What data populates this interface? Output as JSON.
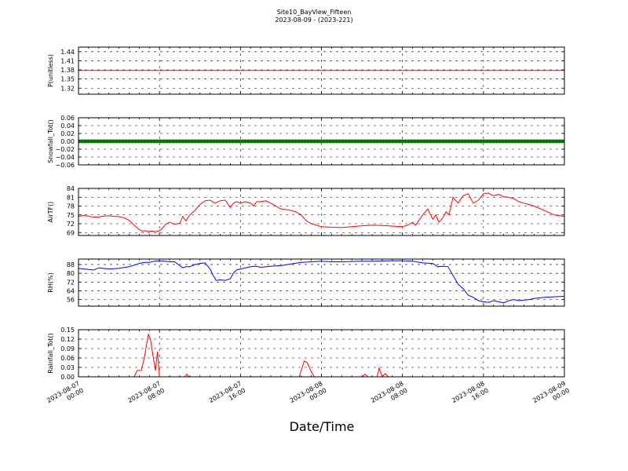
{
  "figure": {
    "title": "Site10_BayView_Fifteen",
    "subtitle": "2023-08-09 - (2023-221)",
    "xlabel": "Date/Time"
  },
  "chart_data": [
    {
      "id": "p",
      "type": "line",
      "ylabel": "P(unitless)",
      "ylim": [
        1.3,
        1.455
      ],
      "yticks": [
        1.32,
        1.35,
        1.38,
        1.41,
        1.44
      ],
      "ytick_labels": [
        "1.32",
        "1.35",
        "1.38",
        "1.41",
        "1.44"
      ],
      "color": "#ff0000",
      "style": "line",
      "grid": true,
      "xlim": [
        0,
        48
      ],
      "x": [
        0,
        48
      ],
      "y": [
        1.378,
        1.378
      ]
    },
    {
      "id": "snow",
      "type": "line",
      "ylabel": "Snowfall_Tot()",
      "ylim": [
        -0.06,
        0.06
      ],
      "yticks": [
        -0.06,
        -0.04,
        -0.02,
        0.0,
        0.02,
        0.04,
        0.06
      ],
      "ytick_labels": [
        "−0.06",
        "−0.04",
        "−0.02",
        "0.00",
        "0.02",
        "0.04",
        "0.06"
      ],
      "color": "#008000",
      "style": "thick",
      "grid": true,
      "xlim": [
        0,
        48
      ],
      "x": [
        0,
        48
      ],
      "y": [
        0,
        0
      ]
    },
    {
      "id": "air",
      "type": "line",
      "ylabel": "AirTF()",
      "ylim": [
        68,
        84
      ],
      "yticks": [
        69,
        72,
        75,
        78,
        81,
        84
      ],
      "ytick_labels": [
        "69",
        "72",
        "75",
        "78",
        "81",
        "84"
      ],
      "color": "#ff0000",
      "style": "line",
      "grid": true,
      "xlim": [
        0,
        48
      ],
      "x": [
        0,
        0.5,
        1,
        1.5,
        2,
        2.5,
        3,
        3.5,
        4,
        4.5,
        5,
        5.5,
        6,
        6.3,
        6.6,
        7,
        7.3,
        7.6,
        8,
        8.3,
        8.6,
        9,
        9.5,
        10,
        10.3,
        10.6,
        11,
        11.5,
        12,
        12.5,
        13,
        13.5,
        14,
        14.5,
        15,
        15.3,
        15.6,
        16,
        16.5,
        17,
        17.3,
        17.6,
        18,
        18.5,
        19,
        19.5,
        20,
        20.5,
        21,
        21.5,
        22,
        22.5,
        23,
        23.5,
        24,
        25,
        26,
        27,
        28,
        29,
        30,
        31,
        32,
        32.5,
        33,
        33.3,
        33.6,
        34,
        34.5,
        35,
        35.3,
        35.6,
        36,
        36.3,
        36.6,
        37,
        37.5,
        38,
        38.5,
        39,
        39.5,
        40,
        40.5,
        41,
        41.5,
        42,
        42.5,
        43,
        43.5,
        44,
        44.5,
        45,
        46,
        47,
        48
      ],
      "y": [
        74.5,
        74.8,
        74.6,
        74.2,
        74.3,
        74.6,
        74.7,
        74.5,
        74.4,
        74.0,
        73.2,
        71.5,
        70.0,
        69.5,
        69.6,
        69.4,
        69.5,
        69.3,
        69.6,
        70.5,
        71.8,
        72.5,
        71.8,
        72.2,
        74.5,
        73.0,
        75.0,
        76.5,
        78.5,
        79.8,
        80.0,
        79.0,
        79.8,
        80.0,
        77.5,
        79.0,
        79.5,
        79.0,
        79.5,
        79.0,
        78.0,
        79.5,
        79.5,
        79.8,
        79.0,
        78.0,
        77.0,
        76.8,
        76.5,
        76.0,
        75.0,
        73.0,
        72.0,
        71.5,
        71.0,
        70.8,
        70.7,
        71.0,
        71.3,
        71.5,
        71.4,
        71.2,
        71.0,
        71.5,
        72.5,
        71.5,
        73.0,
        75.0,
        77.0,
        73.5,
        75.0,
        72.5,
        74.0,
        76.0,
        75.0,
        81.0,
        79.0,
        81.5,
        82.2,
        79.0,
        80.0,
        82.2,
        82.4,
        81.5,
        82.0,
        81.2,
        81.0,
        80.5,
        79.5,
        79.0,
        78.5,
        78.0,
        76.5,
        75.0,
        74.5
      ],
      "xticks": [
        0,
        8,
        16,
        24,
        32,
        40,
        48
      ]
    },
    {
      "id": "rh",
      "type": "line",
      "ylabel": "RH(%)",
      "ylim": [
        50,
        93
      ],
      "yticks": [
        56,
        64,
        72,
        80,
        88
      ],
      "ytick_labels": [
        "56",
        "64",
        "72",
        "80",
        "88"
      ],
      "color": "#0000ff",
      "style": "line",
      "grid": true,
      "xlim": [
        0,
        48
      ],
      "x": [
        0,
        1,
        1.5,
        2,
        3,
        4,
        5,
        6,
        6.5,
        7,
        7.5,
        8,
        8.5,
        9,
        9.5,
        10,
        10.3,
        10.6,
        11,
        11.5,
        12,
        12.5,
        13,
        13.3,
        13.6,
        14,
        14.5,
        15,
        15.3,
        15.6,
        16,
        16.5,
        17,
        17.5,
        18,
        19,
        20,
        21,
        22,
        23,
        24,
        25,
        26,
        27,
        28,
        29,
        30,
        31,
        32,
        33,
        34,
        35,
        35.5,
        36,
        36.5,
        37,
        37.5,
        38,
        38.5,
        39,
        39.5,
        40,
        40.5,
        41,
        41.5,
        42,
        42.5,
        43,
        43.5,
        44,
        44.5,
        45,
        46,
        47,
        48
      ],
      "y": [
        84.5,
        83.5,
        83.0,
        85.0,
        84.0,
        84.5,
        86.0,
        89.0,
        90.0,
        90.0,
        91.0,
        91.5,
        91.0,
        90.5,
        90.5,
        87.0,
        85.0,
        86.0,
        86.0,
        88.0,
        89.0,
        89.5,
        84.0,
        78.0,
        73.5,
        74.0,
        73.5,
        75.0,
        80.0,
        83.0,
        84.0,
        85.0,
        86.0,
        86.5,
        85.5,
        86.5,
        87.0,
        88.5,
        90.0,
        90.5,
        91.0,
        90.5,
        90.5,
        90.8,
        91.0,
        91.0,
        91.2,
        91.5,
        91.5,
        91.0,
        89.5,
        89.0,
        86.0,
        86.5,
        86.0,
        78.0,
        70.0,
        66.0,
        60.0,
        58.0,
        55.0,
        54.0,
        53.5,
        55.0,
        54.0,
        53.0,
        55.0,
        56.0,
        55.0,
        55.5,
        56.0,
        57.0,
        58.0,
        58.5,
        59.0
      ],
      "xticks": [
        0,
        8,
        16,
        24,
        32,
        40,
        48
      ]
    },
    {
      "id": "rain",
      "type": "line",
      "ylabel": "Rainfall_Tot()",
      "ylim": [
        0,
        0.15
      ],
      "yticks": [
        0.0,
        0.03,
        0.06,
        0.09,
        0.12,
        0.15
      ],
      "ytick_labels": [
        "0.00",
        "0.03",
        "0.06",
        "0.09",
        "0.12",
        "0.15"
      ],
      "color": "#ff0000",
      "style": "line",
      "grid": true,
      "xlim": [
        0,
        48
      ],
      "x": [
        0,
        5.5,
        5.8,
        6.2,
        6.5,
        6.9,
        7.1,
        7.4,
        7.6,
        7.8,
        8.0,
        8.1,
        8.3,
        8.5,
        10.5,
        10.7,
        10.9,
        21.8,
        22.1,
        22.3,
        22.6,
        23.0,
        23.3,
        28.0,
        28.3,
        28.6,
        29.5,
        29.7,
        30.0,
        30.3,
        30.6,
        31.0,
        48
      ],
      "y": [
        0,
        0,
        0.02,
        0.02,
        0.06,
        0.135,
        0.12,
        0.06,
        0.02,
        0.08,
        0.0,
        0.0,
        0.0,
        0.0,
        0.0,
        0.008,
        0.0,
        0.0,
        0.03,
        0.05,
        0.045,
        0.015,
        0.0,
        0.0,
        0.008,
        0.0,
        0.0,
        0.028,
        0.0,
        0.01,
        0.0,
        0.0,
        0.0
      ],
      "xticks": [
        0,
        8,
        16,
        24,
        32,
        40,
        48
      ],
      "xtick_labels": [
        [
          "2023-08-07",
          "00:00"
        ],
        [
          "2023-08-07",
          "08:00"
        ],
        [
          "2023-08-07",
          "16:00"
        ],
        [
          "2023-08-08",
          "00:00"
        ],
        [
          "2023-08-08",
          "08:00"
        ],
        [
          "2023-08-08",
          "16:00"
        ],
        [
          "2023-08-09",
          "00:00"
        ]
      ]
    }
  ]
}
